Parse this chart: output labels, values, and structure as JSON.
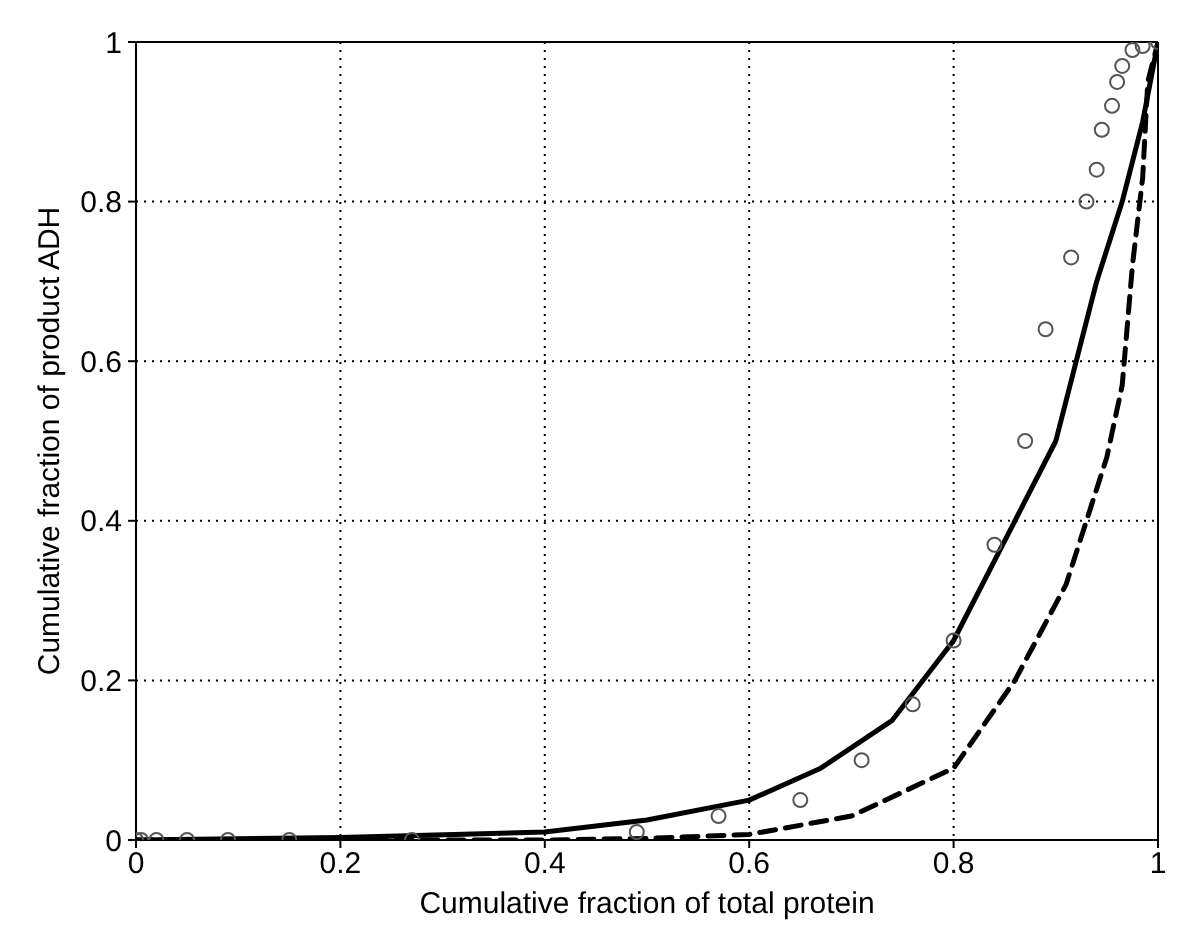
{
  "chart_data": {
    "type": "line",
    "xlabel": "Cumulative fraction of total protein",
    "ylabel": "Cumulative fraction of product ADH",
    "xlim": [
      0,
      1
    ],
    "ylim": [
      0,
      1
    ],
    "xticks": [
      0,
      0.2,
      0.4,
      0.6,
      0.8,
      1
    ],
    "yticks": [
      0,
      0.2,
      0.4,
      0.6,
      0.8,
      1
    ],
    "grid": true,
    "series": [
      {
        "color": "#000000",
        "line_style": "solid",
        "marker": "none",
        "x": [
          0,
          0.2,
          0.4,
          0.5,
          0.6,
          0.67,
          0.74,
          0.8,
          0.86,
          0.9,
          0.92,
          0.94,
          0.965,
          0.985,
          1
        ],
        "values": [
          0,
          0.003,
          0.01,
          0.025,
          0.05,
          0.09,
          0.15,
          0.25,
          0.4,
          0.5,
          0.6,
          0.7,
          0.8,
          0.9,
          1
        ]
      },
      {
        "color": "#000000",
        "line_style": "dashed",
        "marker": "none",
        "x": [
          0,
          0.4,
          0.5,
          0.6,
          0.7,
          0.8,
          0.86,
          0.91,
          0.935,
          0.95,
          0.965,
          0.975,
          0.985,
          0.99,
          1
        ],
        "values": [
          0,
          0,
          0.002,
          0.007,
          0.03,
          0.09,
          0.2,
          0.32,
          0.42,
          0.48,
          0.57,
          0.72,
          0.83,
          0.95,
          1
        ]
      },
      {
        "type": "scatter",
        "color": "#555555",
        "marker": "circle",
        "x": [
          0,
          0.005,
          0.02,
          0.05,
          0.09,
          0.15,
          0.27,
          0.49,
          0.57,
          0.65,
          0.71,
          0.76,
          0.8,
          0.84,
          0.87,
          0.89,
          0.915,
          0.93,
          0.94,
          0.945,
          0.955,
          0.96,
          0.965,
          0.975,
          0.985,
          1
        ],
        "values": [
          0,
          0,
          0,
          0,
          0,
          0,
          0,
          0.01,
          0.03,
          0.05,
          0.1,
          0.17,
          0.25,
          0.37,
          0.5,
          0.64,
          0.73,
          0.8,
          0.84,
          0.89,
          0.92,
          0.95,
          0.97,
          0.99,
          0.995,
          1
        ]
      }
    ]
  }
}
